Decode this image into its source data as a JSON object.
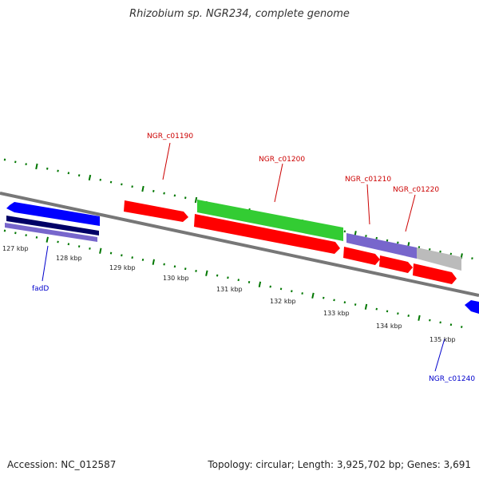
{
  "title": "Rhizobium sp. NGR234, complete genome",
  "footer": {
    "accession": "Accession: NC_012587",
    "summary": "Topology: circular; Length: 3,925,702 bp; Genes: 3,691"
  },
  "colors": {
    "red_feature": "#ff0000",
    "green_feature": "#33cc33",
    "blue_feature": "#0000ff",
    "navy_feature": "#000066",
    "purple_feature": "#7766cc",
    "grey_feature": "#bbbbbb",
    "ticks": "#007700",
    "backbone": "#777777",
    "label_red": "#cc0000",
    "label_blue": "#0000cc"
  },
  "kbp_labels": [
    "127 kbp",
    "128 kbp",
    "129 kbp",
    "130 kbp",
    "131 kbp",
    "132 kbp",
    "133 kbp",
    "134 kbp",
    "135 kbp"
  ],
  "gene_labels": [
    {
      "text": "NGR_c01190",
      "color": "red"
    },
    {
      "text": "NGR_c01200",
      "color": "red"
    },
    {
      "text": "NGR_c01210",
      "color": "red"
    },
    {
      "text": "NGR_c01220",
      "color": "red"
    },
    {
      "text": "fadD",
      "color": "blue"
    },
    {
      "text": "NGR_c01240",
      "color": "blue"
    }
  ]
}
